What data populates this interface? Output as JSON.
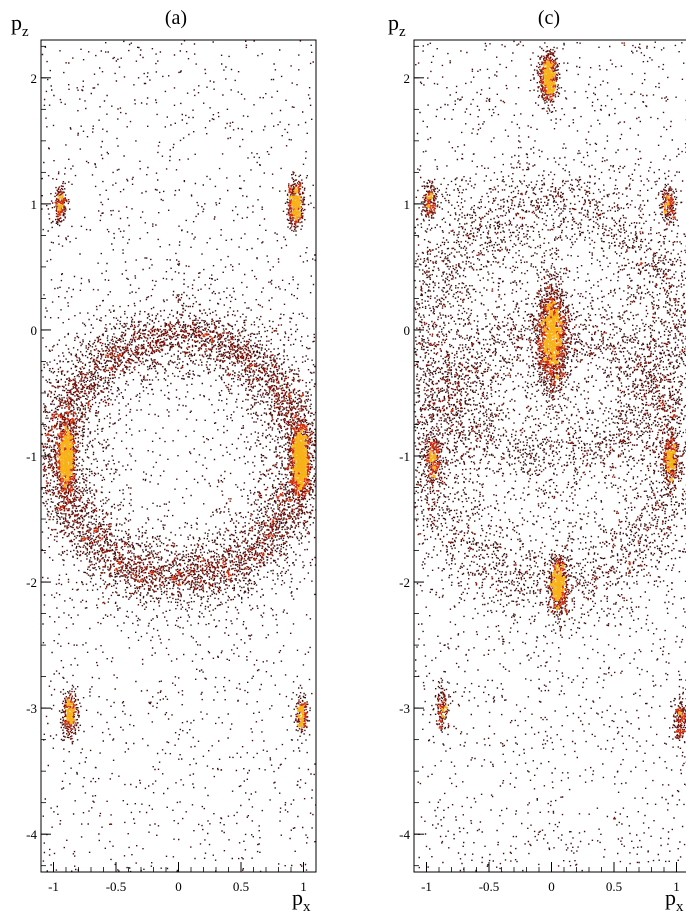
{
  "chart_data": [
    {
      "type": "heatmap",
      "panel_label": "(a)",
      "xlabel_main": "p",
      "xlabel_sub": "x",
      "ylabel_main": "p",
      "ylabel_sub": "z",
      "xlim": [
        -1.1,
        1.1
      ],
      "ylim": [
        -4.3,
        2.3
      ],
      "x_ticks": [
        -1,
        -0.5,
        0,
        0.5,
        1
      ],
      "x_tick_labels": [
        "-1",
        "-0.5",
        "0",
        "0.5",
        "1"
      ],
      "y_ticks": [
        -4,
        -3,
        -2,
        -1,
        0,
        1,
        2
      ],
      "y_tick_labels": [
        "-4",
        "-3",
        "-2",
        "-1",
        "0",
        "1",
        "2"
      ],
      "grid": false,
      "background_density": 2200,
      "rings": [
        {
          "cx": 0,
          "cy": -1,
          "r": 0.97,
          "count": 7500,
          "sigma": 0.09
        }
      ],
      "hotspots": [
        {
          "x": -0.95,
          "y": 1.0,
          "count": 220,
          "sx": 0.025,
          "sy": 0.07
        },
        {
          "x": 0.93,
          "y": 1.0,
          "count": 550,
          "sx": 0.03,
          "sy": 0.09
        },
        {
          "x": -0.9,
          "y": -1.0,
          "count": 950,
          "sx": 0.035,
          "sy": 0.14
        },
        {
          "x": 0.97,
          "y": -1.02,
          "count": 1250,
          "sx": 0.035,
          "sy": 0.14
        },
        {
          "x": -0.87,
          "y": -3.05,
          "count": 380,
          "sx": 0.03,
          "sy": 0.09
        },
        {
          "x": 0.98,
          "y": -3.05,
          "count": 260,
          "sx": 0.025,
          "sy": 0.07
        }
      ]
    },
    {
      "type": "heatmap",
      "panel_label": "(c)",
      "xlabel_main": "p",
      "xlabel_sub": "x",
      "ylabel_main": "p",
      "ylabel_sub": "z",
      "xlim": [
        -1.1,
        1.1
      ],
      "ylim": [
        -4.3,
        2.3
      ],
      "x_ticks": [
        -1,
        -0.5,
        0,
        0.5,
        1
      ],
      "x_tick_labels": [
        "-1",
        "-0.5",
        "0",
        "0.5",
        "1"
      ],
      "y_ticks": [
        -4,
        -3,
        -2,
        -1,
        0,
        1,
        2
      ],
      "y_tick_labels": [
        "-4",
        "-3",
        "-2",
        "-1",
        "0",
        "1",
        "2"
      ],
      "grid": false,
      "background_density": 2600,
      "rings": [
        {
          "cx": 0,
          "cy": 0,
          "r": 1.0,
          "count": 3500,
          "sigma": 0.12
        },
        {
          "cx": 0,
          "cy": -1,
          "r": 1.0,
          "count": 3500,
          "sigma": 0.12
        }
      ],
      "hotspots": [
        {
          "x": -0.03,
          "y": 2.0,
          "count": 700,
          "sx": 0.035,
          "sy": 0.1
        },
        {
          "x": -0.98,
          "y": 1.03,
          "count": 230,
          "sx": 0.03,
          "sy": 0.08
        },
        {
          "x": 0.93,
          "y": 1.0,
          "count": 230,
          "sx": 0.03,
          "sy": 0.08
        },
        {
          "x": 0.0,
          "y": -0.05,
          "count": 1800,
          "sx": 0.06,
          "sy": 0.22
        },
        {
          "x": -0.95,
          "y": -1.02,
          "count": 300,
          "sx": 0.03,
          "sy": 0.1
        },
        {
          "x": 0.95,
          "y": -1.02,
          "count": 420,
          "sx": 0.03,
          "sy": 0.1
        },
        {
          "x": 0.05,
          "y": -2.02,
          "count": 750,
          "sx": 0.035,
          "sy": 0.12
        },
        {
          "x": -0.88,
          "y": -3.0,
          "count": 170,
          "sx": 0.025,
          "sy": 0.09
        },
        {
          "x": 1.03,
          "y": -3.08,
          "count": 220,
          "sx": 0.03,
          "sy": 0.09
        }
      ]
    }
  ]
}
